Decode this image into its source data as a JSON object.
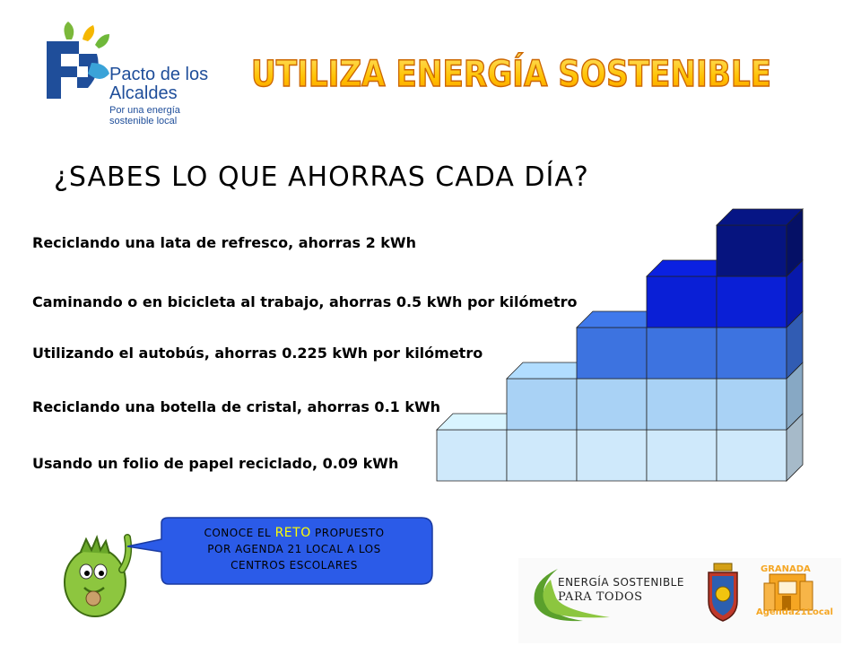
{
  "title": "UTILIZA ENERGÍA SOSTENIBLE",
  "question": "¿SABES LO QUE AHORRAS CADA DÍA?",
  "logo_pacto": {
    "name_line1": "Pacto de los",
    "name_line2": "Alcaldes",
    "tagline_line1": "Por una energía",
    "tagline_line2": "sostenible local"
  },
  "savings": [
    "Reciclando una lata de refresco, ahorras 2 kWh",
    "Caminando o en bicicleta al trabajo, ahorras 0.5 kWh por kilómetro",
    "Utilizando el autobús, ahorras 0.225 kWh por kilómetro",
    "Reciclando una botella de cristal, ahorras 0.1 kWh",
    "Usando un folio de papel reciclado, 0.09 kWh"
  ],
  "bubble": {
    "before": "CONOCE EL ",
    "highlight": "RETO",
    "after": " PROPUESTO",
    "line2": "POR AGENDA 21 LOCAL A LOS",
    "line3": "CENTROS ESCOLARES"
  },
  "footer": {
    "esp_line1": "ENERGÍA SOSTENIBLE",
    "esp_line2": "PARA TODOS",
    "agenda_top": "GRANADA",
    "agenda_bottom": "Agenda21Local"
  },
  "colors": {
    "stair_level1": "#cfe9fb",
    "stair_level2": "#a9d2f5",
    "stair_level3": "#3d73e0",
    "stair_level4": "#0a1fd6",
    "stair_level5": "#06147f",
    "title_fill": "#ffcc00",
    "bubble": "#2b5be8"
  },
  "icons": [
    "pacto-logo-icon",
    "mascot-icon",
    "coat-of-arms-icon",
    "agenda21-building-icon",
    "energy-swoosh-icon"
  ]
}
